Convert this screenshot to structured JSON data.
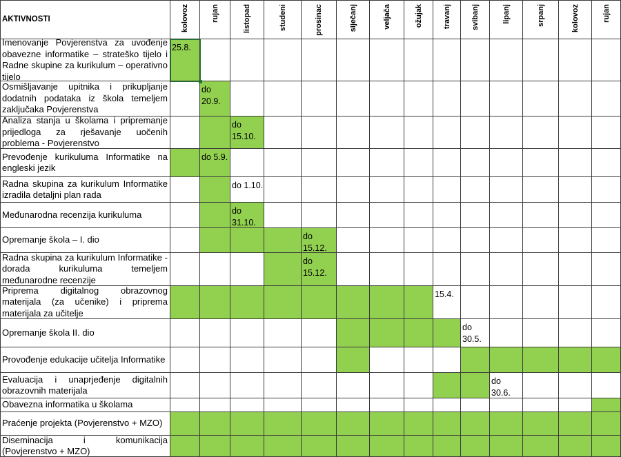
{
  "header": {
    "activities_label": "AKTIVNOSTI",
    "months": [
      "kolovoz",
      "rujan",
      "listopad",
      "studeni",
      "prosinac",
      "siječanj",
      "veljača",
      "ožujak",
      "travanj",
      "svibanj",
      "lipanj",
      "srpanj",
      "kolovoz",
      "rujan"
    ]
  },
  "rows": [
    {
      "activity": "Imenovanje Povjerenstva za uvođenje obavezne informatike – strateško tijelo i Radne skupine za kurikulum – operativno tijelo",
      "green": [
        0
      ],
      "deadline_col": 0,
      "deadline": "25.8."
    },
    {
      "activity": "Osmišljavanje upitnika i prikupljanje dodatnih podataka iz škola temeljem zaključaka Povjerenstva",
      "green": [
        1
      ],
      "deadline_col": 1,
      "deadline": "do 20.9."
    },
    {
      "activity": "Analiza stanja u školama i pripremanje prijedloga za rješavanje uočenih problema - Povjerenstvo",
      "green": [
        1,
        2
      ],
      "deadline_col": 2,
      "deadline": "do 15.10."
    },
    {
      "activity": "Prevođenje kurikuluma Informatike na engleski jezik",
      "green": [
        0,
        1
      ],
      "deadline_col": 1,
      "deadline": "do 5.9."
    },
    {
      "activity": "Radna skupina za kurikulum Informatike izradila detaljni plan rada",
      "green": [
        1
      ],
      "deadline_col": 2,
      "deadline": "do 1.10."
    },
    {
      "activity": "Međunarodna recenzija kurikuluma",
      "green": [
        1,
        2
      ],
      "deadline_col": 2,
      "deadline": "do 31.10."
    },
    {
      "activity": "Opremanje škola – I. dio",
      "green": [
        1,
        2,
        3,
        4
      ],
      "deadline_col": 4,
      "deadline": "do 15.12."
    },
    {
      "activity": "Radna skupina za kurikulum Informatike - dorada kurikuluma temeljem međunarodne recenzije",
      "green": [
        3,
        4
      ],
      "deadline_col": 4,
      "deadline": "do 15.12."
    },
    {
      "activity": "Priprema digitalnog obrazovnog materijala (za učenike) i priprema materijala za učitelje",
      "green": [
        0,
        1,
        2,
        3,
        4,
        5,
        6,
        7
      ],
      "deadline_col": 8,
      "deadline": "15.4."
    },
    {
      "activity": "Opremanje škola II. dio",
      "green": [
        5,
        6,
        7,
        8
      ],
      "deadline_col": 9,
      "deadline": "do 30.5."
    },
    {
      "activity": "Provođenje edukacije učitelja Informatike",
      "green": [
        5,
        9,
        10,
        11,
        12,
        13
      ],
      "deadline_col": -1,
      "deadline": ""
    },
    {
      "activity": "Evaluacija i unaprjeđenje digitalnih obrazovnih materijala",
      "green": [
        8,
        9
      ],
      "deadline_col": 10,
      "deadline": "do 30.6."
    },
    {
      "activity": "Obavezna informatika u školama",
      "green": [
        13
      ],
      "deadline_col": -1,
      "deadline": ""
    },
    {
      "activity": "Praćenje projekta (Povjerenstvo + MZO)",
      "green": [
        0,
        1,
        2,
        3,
        4,
        5,
        6,
        7,
        8,
        9,
        10,
        11,
        12,
        13
      ],
      "deadline_col": -1,
      "deadline": ""
    },
    {
      "activity": "Diseminacija i komunikacija (Povjerenstvo + MZO)",
      "green": [
        0,
        1,
        2,
        3,
        4,
        5,
        6,
        7,
        8,
        9,
        10,
        11,
        12,
        13
      ],
      "deadline_col": -1,
      "deadline": ""
    }
  ],
  "colors": {
    "fill": "#92d050",
    "grid": "#3a3a3a",
    "selection": "#1e7b34"
  }
}
